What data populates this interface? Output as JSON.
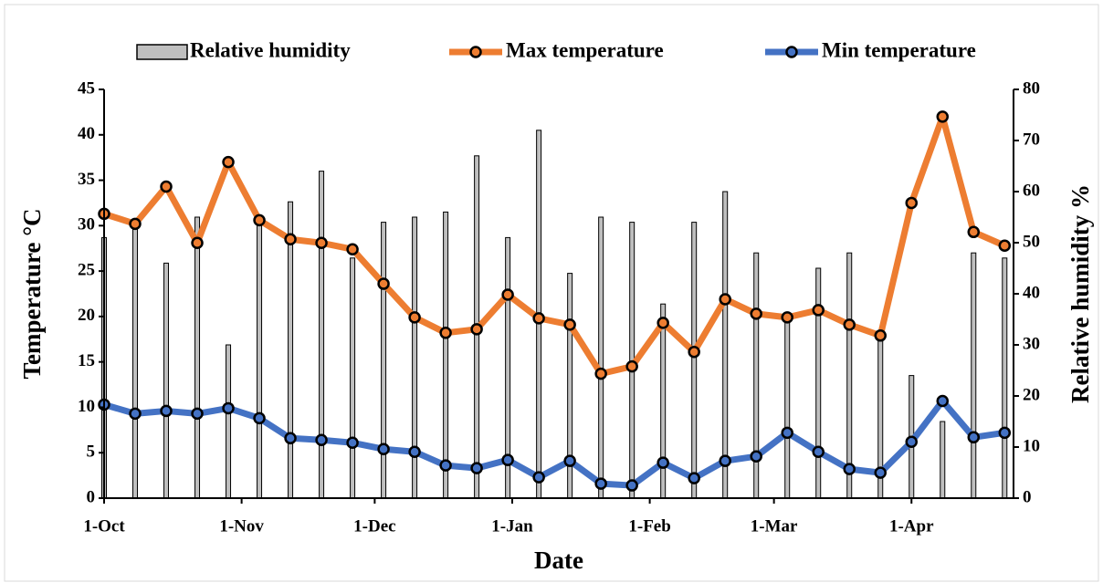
{
  "chart_data": {
    "type": "line",
    "xlabel": "Date",
    "ylabel": "Temperature °C",
    "y2label": "Relative humidity %",
    "x": [
      0,
      7,
      14,
      21,
      28,
      35,
      42,
      49,
      56,
      63,
      70,
      77,
      84,
      91,
      98,
      105,
      112,
      119,
      126,
      133,
      140,
      147,
      154,
      161,
      168,
      175,
      182,
      189,
      196,
      203
    ],
    "xlim": [
      0,
      205
    ],
    "xticks": [
      {
        "value": 0,
        "label": "1-Oct"
      },
      {
        "value": 31,
        "label": "1-Nov"
      },
      {
        "value": 61,
        "label": "1-Dec"
      },
      {
        "value": 92,
        "label": "1-Jan"
      },
      {
        "value": 123,
        "label": "1-Feb"
      },
      {
        "value": 151,
        "label": "1-Mar"
      },
      {
        "value": 182,
        "label": "1-Apr"
      }
    ],
    "ylim": [
      0,
      45
    ],
    "yticks": [
      0,
      5,
      10,
      15,
      20,
      25,
      30,
      35,
      40,
      45
    ],
    "y2lim": [
      0,
      80
    ],
    "y2ticks": [
      0,
      10,
      20,
      30,
      40,
      50,
      60,
      70,
      80
    ],
    "legend": "top",
    "series": [
      {
        "name": "Relative humidity",
        "type": "bar",
        "axis": "y2",
        "color": "#bfbfbf",
        "values": [
          51,
          54,
          46,
          55,
          30,
          54,
          58,
          64,
          47,
          54,
          55,
          56,
          67,
          51,
          72,
          44,
          55,
          54,
          38,
          54,
          60,
          48,
          36,
          45,
          48,
          32,
          24,
          15,
          48,
          47
        ]
      },
      {
        "name": "Max temperature",
        "type": "line",
        "color": "#ed7d31",
        "values": [
          31.3,
          30.2,
          34.3,
          28.1,
          37,
          30.6,
          28.5,
          28.1,
          27.4,
          23.6,
          19.9,
          18.2,
          18.6,
          22.4,
          19.8,
          19.1,
          13.7,
          14.5,
          19.3,
          16.1,
          21.9,
          20.3,
          19.9,
          20.7,
          19.1,
          17.9,
          32.5,
          42,
          29.3,
          27.8
        ]
      },
      {
        "name": "Min temperature",
        "type": "line",
        "color": "#4472c4",
        "values": [
          10.3,
          9.3,
          9.6,
          9.3,
          9.9,
          8.8,
          6.6,
          6.4,
          6.1,
          5.4,
          5.1,
          3.6,
          3.3,
          4.2,
          2.3,
          4.1,
          1.6,
          1.4,
          3.9,
          2.2,
          4.1,
          4.6,
          7.2,
          5.1,
          3.2,
          2.8,
          6.2,
          10.7,
          6.7,
          7.2
        ]
      }
    ]
  }
}
